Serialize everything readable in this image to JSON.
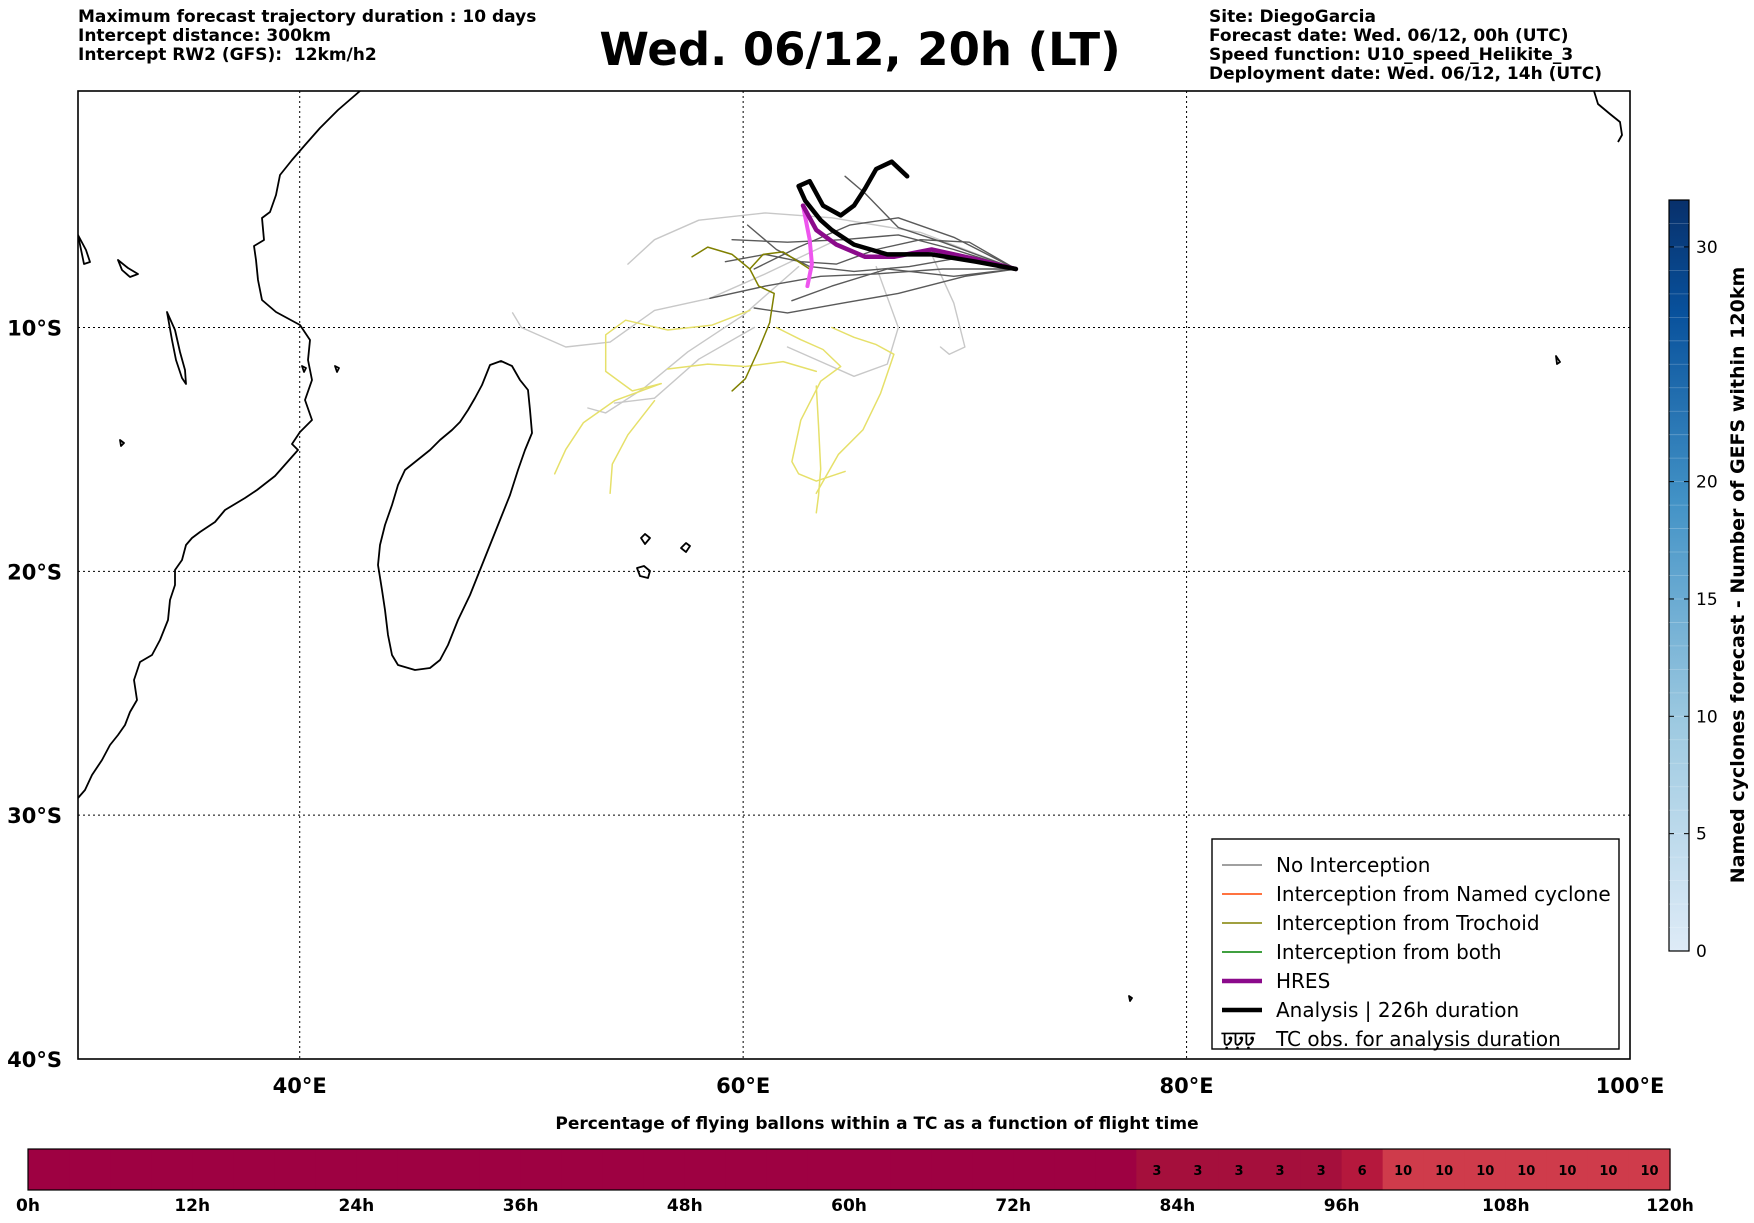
{
  "header": {
    "left": [
      "Maximum forecast trajectory duration : 10 days",
      "Intercept distance: 300km",
      "Intercept RW2 (GFS):  12km/h2"
    ],
    "title": "Wed. 06/12, 20h (LT)",
    "right": [
      "Site: DiegoGarcia",
      "Forecast date: Wed. 06/12, 00h (UTC)",
      "Speed function: U10_speed_Helikite_3",
      "Deployment date: Wed. 06/12, 14h (UTC)"
    ]
  },
  "chart_data": [
    {
      "type": "line",
      "subtype": "trajectory-map",
      "xlim": [
        30,
        100
      ],
      "ylim": [
        -40,
        -0.3
      ],
      "grid": true,
      "xticks": [
        {
          "value": 40,
          "label": "40°E"
        },
        {
          "value": 60,
          "label": "60°E"
        },
        {
          "value": 80,
          "label": "80°E"
        },
        {
          "value": 100,
          "label": "100°E"
        }
      ],
      "yticks": [
        {
          "value": -10,
          "label": "10°S"
        },
        {
          "value": -20,
          "label": "20°S"
        },
        {
          "value": -30,
          "label": "30°S"
        },
        {
          "value": -40,
          "label": "40°S"
        }
      ],
      "legend_position": "bottom-right",
      "legend": [
        {
          "label": "No Interception",
          "color": "#808080",
          "style": "thin"
        },
        {
          "label": "Interception from Named cyclone",
          "color": "#ff4500",
          "style": "thin"
        },
        {
          "label": "Interception from Trochoid",
          "color": "#808000",
          "style": "thin"
        },
        {
          "label": "Interception from both",
          "color": "#008000",
          "style": "thin"
        },
        {
          "label": "HRES",
          "color": "#8b0a8b",
          "style": "thick"
        },
        {
          "label": "Analysis | 226h duration",
          "color": "#000000",
          "style": "thick"
        },
        {
          "label": "TC obs. for analysis duration",
          "color": "#000000",
          "style": "symbol",
          "symbol": "ঢ়ঢ়ঢ়"
        }
      ],
      "colors": {
        "ensemble_dark": "#5a5a5a",
        "ensemble_light": "#c8c8c8",
        "trochoid": "#808000",
        "yellow": "#e6e06a",
        "hres": "#8b0a8b",
        "hres_start": "#ee55ee",
        "analysis": "#000000"
      },
      "series": [
        {
          "name": "HRES",
          "kind": "hres",
          "points": [
            [
              72.3,
              -7.6
            ],
            [
              70.5,
              -7.2
            ],
            [
              68.5,
              -6.8
            ],
            [
              66.8,
              -7.1
            ],
            [
              65.5,
              -7.1
            ],
            [
              64.2,
              -6.6
            ],
            [
              63.3,
              -6.0
            ],
            [
              62.7,
              -5.0
            ]
          ]
        },
        {
          "name": "Analysis | 226h duration",
          "kind": "analysis",
          "points": [
            [
              72.3,
              -7.6
            ],
            [
              70.5,
              -7.3
            ],
            [
              68.5,
              -7.0
            ],
            [
              66.5,
              -7.0
            ],
            [
              65.0,
              -6.6
            ],
            [
              64.0,
              -6.0
            ],
            [
              63.5,
              -5.6
            ],
            [
              62.8,
              -4.8
            ],
            [
              62.5,
              -4.2
            ],
            [
              63.0,
              -4.0
            ],
            [
              63.6,
              -5.0
            ],
            [
              64.4,
              -5.4
            ],
            [
              65.0,
              -5.0
            ],
            [
              65.5,
              -4.3
            ],
            [
              66.0,
              -3.5
            ],
            [
              66.7,
              -3.2
            ],
            [
              67.4,
              -3.8
            ]
          ]
        },
        {
          "kind": "hres_start",
          "points": [
            [
              62.7,
              -5.0
            ],
            [
              63.0,
              -6.4
            ],
            [
              63.1,
              -7.4
            ],
            [
              62.9,
              -8.3
            ]
          ]
        },
        {
          "kind": "ensemble_dark",
          "points": [
            [
              72.3,
              -7.6
            ],
            [
              69.5,
              -6.8
            ],
            [
              67.0,
              -6.2
            ],
            [
              64.5,
              -6.4
            ],
            [
              62.0,
              -6.5
            ],
            [
              59.5,
              -6.4
            ]
          ]
        },
        {
          "kind": "ensemble_dark",
          "points": [
            [
              72.3,
              -7.6
            ],
            [
              69.0,
              -7.6
            ],
            [
              66.0,
              -7.8
            ],
            [
              63.5,
              -7.9
            ],
            [
              61.0,
              -8.3
            ],
            [
              58.5,
              -8.8
            ]
          ]
        },
        {
          "kind": "ensemble_dark",
          "points": [
            [
              72.3,
              -7.6
            ],
            [
              70.0,
              -7.9
            ],
            [
              67.0,
              -8.6
            ],
            [
              64.5,
              -9.0
            ],
            [
              62.0,
              -9.4
            ],
            [
              60.5,
              -9.2
            ]
          ]
        },
        {
          "kind": "ensemble_dark",
          "points": [
            [
              72.3,
              -7.6
            ],
            [
              69.5,
              -6.3
            ],
            [
              67.0,
              -5.5
            ],
            [
              64.8,
              -5.8
            ],
            [
              62.5,
              -6.7
            ],
            [
              60.5,
              -7.6
            ]
          ]
        },
        {
          "kind": "ensemble_dark",
          "points": [
            [
              72.3,
              -7.6
            ],
            [
              70.0,
              -7.1
            ],
            [
              67.5,
              -7.5
            ],
            [
              65.0,
              -7.7
            ],
            [
              63.0,
              -7.5
            ],
            [
              61.5,
              -6.8
            ],
            [
              60.2,
              -5.8
            ]
          ]
        },
        {
          "kind": "ensemble_dark",
          "points": [
            [
              72.3,
              -7.6
            ],
            [
              69.0,
              -6.5
            ],
            [
              67.0,
              -5.9
            ],
            [
              65.5,
              -4.5
            ],
            [
              64.6,
              -3.8
            ]
          ]
        },
        {
          "kind": "ensemble_dark",
          "points": [
            [
              72.3,
              -7.6
            ],
            [
              69.5,
              -7.9
            ],
            [
              66.5,
              -7.6
            ],
            [
              64.0,
              -8.3
            ],
            [
              62.2,
              -8.9
            ]
          ]
        },
        {
          "kind": "ensemble_dark",
          "points": [
            [
              72.3,
              -7.6
            ],
            [
              70.2,
              -6.5
            ],
            [
              68.0,
              -6.4
            ],
            [
              66.0,
              -6.8
            ],
            [
              64.2,
              -7.4
            ],
            [
              62.6,
              -7.3
            ],
            [
              61.0,
              -7.0
            ],
            [
              59.2,
              -7.3
            ]
          ]
        },
        {
          "kind": "ensemble_light",
          "points": [
            [
              72.3,
              -7.6
            ],
            [
              68.0,
              -6.1
            ],
            [
              64.0,
              -5.5
            ],
            [
              61.0,
              -5.3
            ],
            [
              58.0,
              -5.6
            ],
            [
              56.0,
              -6.4
            ],
            [
              54.8,
              -7.4
            ]
          ]
        },
        {
          "kind": "ensemble_light",
          "points": [
            [
              64.0,
              -6.5
            ],
            [
              61.0,
              -7.8
            ],
            [
              58.5,
              -8.8
            ],
            [
              56.0,
              -9.3
            ],
            [
              54.0,
              -10.6
            ],
            [
              52.0,
              -10.8
            ],
            [
              50.0,
              -10.0
            ],
            [
              49.6,
              -9.4
            ]
          ]
        },
        {
          "kind": "ensemble_light",
          "points": [
            [
              62.5,
              -7.5
            ],
            [
              60.0,
              -9.5
            ],
            [
              57.5,
              -11.0
            ],
            [
              55.5,
              -12.5
            ],
            [
              53.8,
              -13.5
            ],
            [
              53.0,
              -13.3
            ]
          ]
        },
        {
          "kind": "ensemble_light",
          "points": [
            [
              66.0,
              -7.5
            ],
            [
              67.0,
              -10.0
            ],
            [
              66.5,
              -11.5
            ],
            [
              65.0,
              -12.0
            ],
            [
              63.5,
              -11.4
            ],
            [
              62.0,
              -10.8
            ]
          ]
        },
        {
          "kind": "ensemble_light",
          "points": [
            [
              68.5,
              -7.0
            ],
            [
              69.5,
              -9.0
            ],
            [
              70.0,
              -10.8
            ],
            [
              69.3,
              -11.1
            ],
            [
              68.9,
              -10.8
            ]
          ]
        },
        {
          "kind": "ensemble_light",
          "points": [
            [
              60.5,
              -10.0
            ],
            [
              58.0,
              -11.3
            ],
            [
              56.0,
              -12.9
            ],
            [
              54.2,
              -13.1
            ]
          ]
        },
        {
          "kind": "trochoid",
          "points": [
            [
              63.0,
              -7.6
            ],
            [
              61.8,
              -6.9
            ],
            [
              60.9,
              -7.0
            ],
            [
              60.3,
              -7.6
            ],
            [
              60.7,
              -8.3
            ],
            [
              61.4,
              -8.6
            ],
            [
              61.2,
              -9.8
            ],
            [
              60.7,
              -10.9
            ],
            [
              60.1,
              -12.1
            ],
            [
              59.5,
              -12.6
            ]
          ]
        },
        {
          "kind": "trochoid",
          "points": [
            [
              60.3,
              -7.6
            ],
            [
              59.5,
              -7.0
            ],
            [
              58.4,
              -6.7
            ],
            [
              57.7,
              -7.1
            ]
          ]
        },
        {
          "kind": "yellow",
          "points": [
            [
              60.3,
              -9.3
            ],
            [
              58.6,
              -9.9
            ],
            [
              56.6,
              -10.1
            ],
            [
              54.7,
              -9.7
            ],
            [
              53.8,
              -10.3
            ],
            [
              53.8,
              -11.8
            ],
            [
              55.0,
              -12.6
            ],
            [
              56.3,
              -12.3
            ]
          ]
        },
        {
          "kind": "yellow",
          "points": [
            [
              56.3,
              -12.3
            ],
            [
              54.2,
              -13.0
            ],
            [
              52.8,
              -13.9
            ],
            [
              52.0,
              -15.0
            ],
            [
              51.7,
              -15.6
            ],
            [
              51.5,
              -16.0
            ]
          ]
        },
        {
          "kind": "yellow",
          "points": [
            [
              56.0,
              -13.0
            ],
            [
              54.8,
              -14.4
            ],
            [
              54.1,
              -15.6
            ],
            [
              54.0,
              -16.8
            ]
          ]
        },
        {
          "kind": "yellow",
          "points": [
            [
              61.5,
              -10.0
            ],
            [
              62.6,
              -10.5
            ],
            [
              63.6,
              -10.9
            ],
            [
              64.4,
              -11.6
            ],
            [
              63.5,
              -12.2
            ],
            [
              62.6,
              -13.8
            ],
            [
              62.2,
              -15.5
            ],
            [
              62.5,
              -16.0
            ],
            [
              63.3,
              -16.3
            ],
            [
              64.6,
              -15.9
            ]
          ]
        },
        {
          "kind": "yellow",
          "points": [
            [
              64.0,
              -10.0
            ],
            [
              65.0,
              -10.4
            ],
            [
              66.0,
              -10.7
            ],
            [
              66.8,
              -11.1
            ],
            [
              66.2,
              -12.7
            ],
            [
              65.4,
              -14.2
            ],
            [
              64.3,
              -15.2
            ],
            [
              63.3,
              -16.8
            ]
          ]
        },
        {
          "kind": "yellow",
          "points": [
            [
              63.3,
              -12.4
            ],
            [
              63.4,
              -14.0
            ],
            [
              63.5,
              -15.8
            ],
            [
              63.4,
              -16.9
            ],
            [
              63.3,
              -17.6
            ]
          ]
        },
        {
          "kind": "yellow",
          "points": [
            [
              56.6,
              -11.7
            ],
            [
              58.4,
              -11.5
            ],
            [
              60.1,
              -11.6
            ],
            [
              61.8,
              -11.4
            ],
            [
              63.3,
              -11.8
            ]
          ]
        }
      ]
    },
    {
      "type": "heatmap",
      "role": "colorbar",
      "title": "Named cyclones forecast - Number of GEFS within 120km",
      "range": [
        0,
        32
      ],
      "ticks": [
        0,
        5,
        10,
        15,
        20,
        30
      ]
    },
    {
      "type": "table",
      "role": "flight-time-strip",
      "title": "Percentage of flying ballons within a TC as a function of flight time",
      "tick_labels": [
        "0h",
        "12h",
        "24h",
        "36h",
        "48h",
        "60h",
        "72h",
        "84h",
        "96h",
        "108h",
        "120h"
      ],
      "segment_hours": 3,
      "segments_total": 40,
      "values": [
        0,
        0,
        0,
        0,
        0,
        0,
        0,
        0,
        0,
        0,
        0,
        0,
        0,
        0,
        0,
        0,
        0,
        0,
        0,
        0,
        0,
        0,
        0,
        0,
        0,
        0,
        0,
        3,
        3,
        3,
        3,
        3,
        6,
        10,
        10,
        10,
        10,
        10,
        10,
        10
      ],
      "colors": {
        "0": "#9e0142",
        "3": "#a50f3c",
        "6": "#b5183d",
        "10": "#cf3b4b"
      }
    }
  ]
}
